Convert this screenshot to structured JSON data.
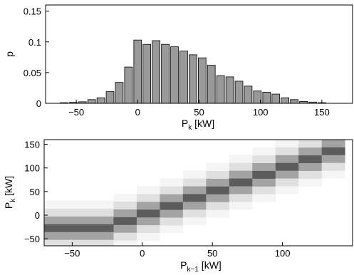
{
  "chart_data": [
    {
      "type": "bar",
      "xlabel": {
        "base": "P",
        "sub": "k",
        "unit": " [kW]"
      },
      "ylabel": "p",
      "xlim": [
        -75,
        175
      ],
      "ylim": [
        0,
        0.16
      ],
      "xticks": [
        -50,
        0,
        50,
        100,
        150
      ],
      "xtick_labels": [
        "−50",
        "0",
        "50",
        "100",
        "150"
      ],
      "yticks": [
        0,
        0.05,
        0.1,
        0.15
      ],
      "ytick_labels": [
        "0",
        "0.05",
        "0.1",
        "0.15"
      ],
      "bin_width": 7.5,
      "x": [
        -60,
        -52.5,
        -45,
        -37.5,
        -30,
        -22.5,
        -15,
        -7.5,
        0,
        7.5,
        15,
        22.5,
        30,
        37.5,
        45,
        52.5,
        60,
        67.5,
        75,
        82.5,
        90,
        97.5,
        105,
        112.5,
        120,
        127.5,
        135,
        142.5,
        150
      ],
      "values": [
        0.001,
        0.0015,
        0.0025,
        0.006,
        0.009,
        0.019,
        0.034,
        0.059,
        0.103,
        0.096,
        0.102,
        0.096,
        0.092,
        0.085,
        0.079,
        0.074,
        0.062,
        0.045,
        0.043,
        0.036,
        0.028,
        0.02,
        0.018,
        0.015,
        0.009,
        0.006,
        0.003,
        0.002,
        0.001
      ],
      "colors": {
        "bar_fill": "#999999",
        "bar_stroke": "#000000"
      }
    },
    {
      "type": "heatmap",
      "xlabel": {
        "base": "P",
        "sub": "k−1",
        "unit": " [kW]"
      },
      "ylabel": {
        "base": "P",
        "sub": "k",
        "unit": " [kW]"
      },
      "xlim": [
        -70,
        150
      ],
      "ylim": [
        -65,
        160
      ],
      "xticks": [
        -50,
        0,
        50,
        100
      ],
      "xtick_labels": [
        "−50",
        "0",
        "50",
        "100"
      ],
      "yticks": [
        -50,
        0,
        50,
        100,
        150
      ],
      "ytick_labels": [
        "−50",
        "0",
        "50",
        "100",
        "150"
      ],
      "cell_width": 16.5,
      "cell_height": 16.5,
      "x_centers": [
        -61.75,
        -45.25,
        -28.75,
        -12.25,
        4.25,
        20.75,
        37.25,
        53.75,
        70.25,
        86.75,
        103.25,
        119.75,
        136.25
      ],
      "diagonal_y": [
        -27,
        -27,
        -27,
        -12,
        4,
        20,
        37,
        53,
        70,
        86,
        103,
        119,
        136
      ],
      "profile": {
        "offsets": [
          -3,
          -2,
          -1,
          0,
          1,
          2,
          3
        ],
        "levels": [
          0.05,
          0.15,
          0.45,
          0.8,
          0.45,
          0.15,
          0.05
        ]
      },
      "colors": {
        "max": "#333333",
        "min": "#ffffff"
      }
    }
  ]
}
